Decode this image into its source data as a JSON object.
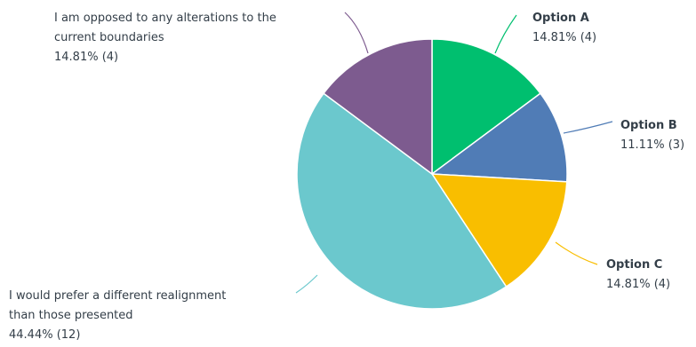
{
  "chart_data": {
    "type": "pie",
    "title": "",
    "colors": {
      "option_a": "#00bf6f",
      "option_b": "#507cb6",
      "option_c": "#f9be00",
      "different": "#6bc8cd",
      "opposed": "#7d5b8f"
    },
    "slices": [
      {
        "key": "option_a",
        "name": "Option A",
        "percent_label": "14.81% (4)",
        "percent": 14.81,
        "count": 4
      },
      {
        "key": "option_b",
        "name": "Option B",
        "percent_label": "11.11% (3)",
        "percent": 11.11,
        "count": 3
      },
      {
        "key": "option_c",
        "name": "Option C",
        "percent_label": "14.81% (4)",
        "percent": 14.81,
        "count": 4
      },
      {
        "key": "different",
        "name_lines": [
          "I would prefer a different realignment",
          "than those presented"
        ],
        "percent_label": "44.44% (12)",
        "percent": 44.44,
        "count": 12
      },
      {
        "key": "opposed",
        "name_lines": [
          "I am opposed to any alterations to the",
          "current boundaries"
        ],
        "percent_label": "14.81% (4)",
        "percent": 14.81,
        "count": 4
      }
    ]
  }
}
